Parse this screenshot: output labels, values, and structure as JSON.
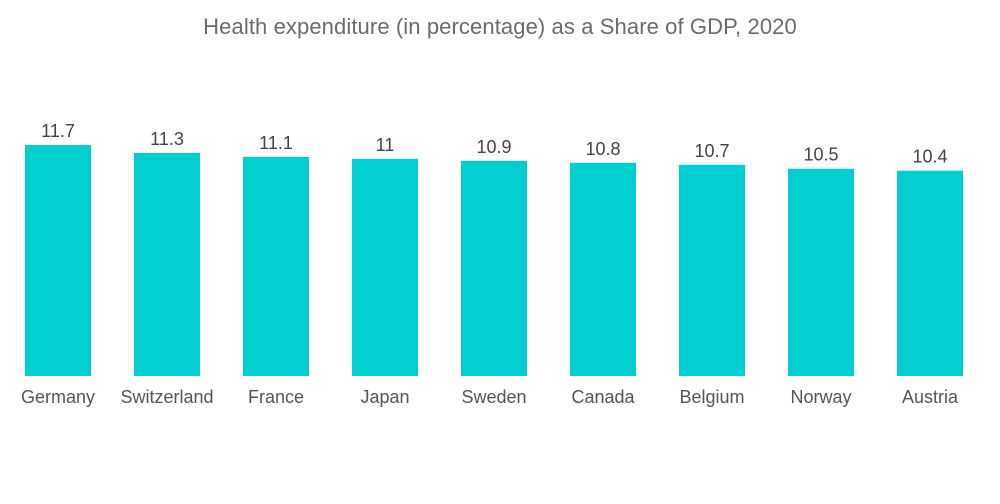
{
  "chart_data": {
    "type": "bar",
    "title": "Health expenditure (in percentage) as a Share of GDP, 2020",
    "xlabel": "",
    "ylabel": "",
    "categories": [
      "Germany",
      "Switzerland",
      "France",
      "Japan",
      "Sweden",
      "Canada",
      "Belgium",
      "Norway",
      "Austria"
    ],
    "values": [
      11.7,
      11.3,
      11.1,
      11,
      10.9,
      10.8,
      10.7,
      10.5,
      10.4
    ],
    "value_labels": [
      "11.7",
      "11.3",
      "11.1",
      "11",
      "10.9",
      "10.8",
      "10.7",
      "10.5",
      "10.4"
    ],
    "ylim": [
      0,
      11.7
    ],
    "grid": false,
    "legend": "none",
    "bar_color": "#00CED1"
  }
}
